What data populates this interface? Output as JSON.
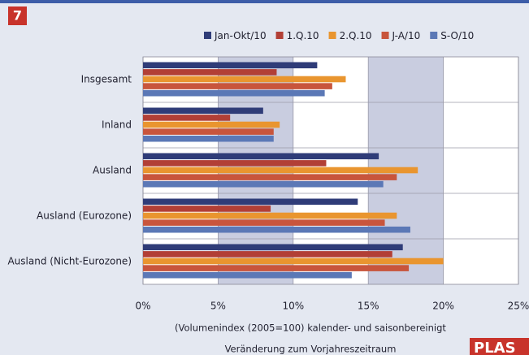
{
  "figure_number": "7",
  "logo": "PLAS",
  "chart_data": {
    "type": "barh",
    "categories": [
      "Insgesamt",
      "Inland",
      "Ausland",
      "Ausland (Eurozone)",
      "Ausland (Nicht-Eurozone)"
    ],
    "series": [
      {
        "name": "Jan-Okt/10",
        "color": "#2f3c78",
        "values": [
          11.6,
          8.0,
          15.7,
          14.3,
          17.3
        ]
      },
      {
        "name": "1.Q.10",
        "color": "#b23f36",
        "values": [
          8.9,
          5.8,
          12.2,
          8.5,
          16.6
        ]
      },
      {
        "name": "2.Q.10",
        "color": "#e9952f",
        "values": [
          13.5,
          9.1,
          18.3,
          16.9,
          20.0
        ]
      },
      {
        "name": "J-A/10",
        "color": "#c8553c",
        "values": [
          12.6,
          8.7,
          16.9,
          16.1,
          17.7
        ]
      },
      {
        "name": "S-O/10",
        "color": "#5b78b6",
        "values": [
          12.1,
          8.7,
          16.0,
          17.8,
          13.9
        ]
      }
    ],
    "xlim": [
      0,
      25
    ],
    "xticks": [
      {
        "value": 0,
        "label": "0%"
      },
      {
        "value": 5,
        "label": "5%"
      },
      {
        "value": 10,
        "label": "10%"
      },
      {
        "value": 15,
        "label": "15%"
      },
      {
        "value": 20,
        "label": "20%"
      },
      {
        "value": 25,
        "label": "25%"
      }
    ],
    "xlabel": [
      "(Volumenindex (2005=100) kalender- und saisonbereinigt",
      "Veränderung zum Vorjahreszeitraum"
    ],
    "grid": true,
    "legend": "top"
  }
}
